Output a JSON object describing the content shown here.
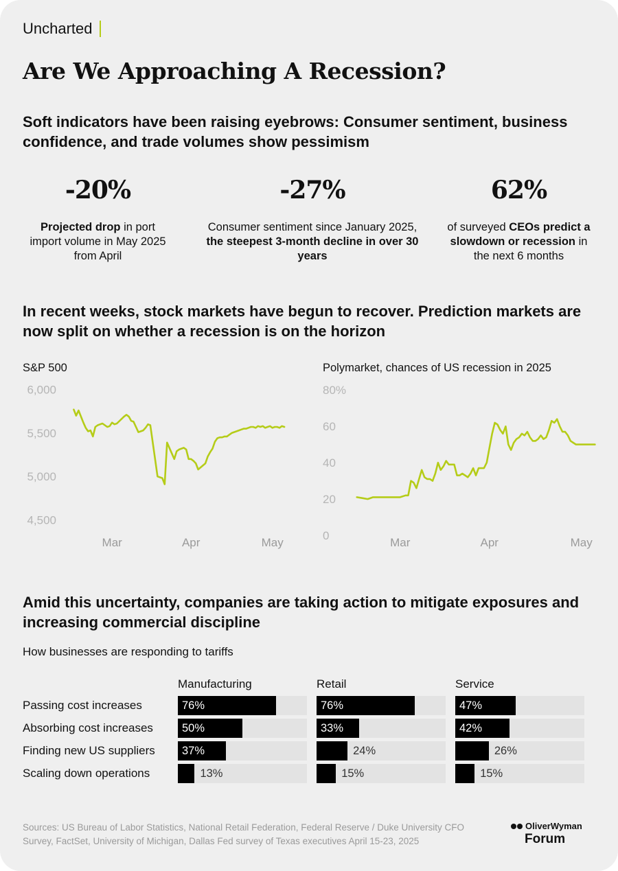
{
  "brand": "Uncharted",
  "title": "Are We Approaching A Recession?",
  "section1_heading": "Soft indicators have been raising eyebrows: Consumer sentiment, business confidence, and trade volumes show pessimism",
  "stats": [
    {
      "value": "-20%",
      "desc_parts": [
        {
          "t": "Projected drop",
          "b": true
        },
        {
          "t": " in port import volume in May 2025 from April",
          "b": false
        }
      ]
    },
    {
      "value": "-27%",
      "desc_parts": [
        {
          "t": "Consumer sentiment since January 2025, ",
          "b": false
        },
        {
          "t": "the steepest 3-month decline in over 30 years",
          "b": true
        }
      ]
    },
    {
      "value": "62%",
      "desc_parts": [
        {
          "t": "of surveyed ",
          "b": false
        },
        {
          "t": "CEOs predict a slowdown or recession",
          "b": true
        },
        {
          "t": " in the next 6 months",
          "b": false
        }
      ]
    }
  ],
  "section2_heading": "In recent weeks, stock markets have begun to recover. Prediction markets are now split on whether a recession is on the horizon",
  "chart_data": [
    {
      "type": "line",
      "title": "S&P 500",
      "color": "#b5cc18",
      "ylim": [
        4400,
        6100
      ],
      "yticks": [
        4500,
        5000,
        5500,
        6000
      ],
      "ytick_labels": [
        "4,500",
        "5,000",
        "5,500",
        "6,000"
      ],
      "xticks": [
        {
          "label": "Mar",
          "x": 16
        },
        {
          "label": "Apr",
          "x": 49
        },
        {
          "label": "May",
          "x": 83
        }
      ],
      "xlim": [
        -5,
        94
      ],
      "series": [
        {
          "x": [
            0,
            1,
            2,
            3,
            4,
            5,
            6,
            7,
            8,
            9,
            10,
            11,
            12,
            14,
            15,
            16,
            17,
            18,
            21,
            22,
            23,
            24,
            25,
            26,
            27,
            28,
            29,
            30,
            31,
            32,
            35,
            36,
            37,
            38,
            39,
            42,
            43,
            44,
            45,
            46,
            47,
            48,
            49,
            50,
            51,
            52,
            55,
            56,
            57,
            58,
            59,
            60,
            61,
            62,
            63,
            64,
            65,
            66,
            67,
            68,
            69,
            70,
            71,
            72,
            73,
            74,
            75,
            76,
            77,
            78,
            79,
            80,
            81,
            82,
            83,
            84,
            85,
            86,
            87,
            88
          ],
          "values": [
            5770,
            5700,
            5760,
            5690,
            5620,
            5560,
            5520,
            5530,
            5460,
            5570,
            5590,
            5600,
            5610,
            5570,
            5580,
            5620,
            5600,
            5610,
            5690,
            5710,
            5690,
            5640,
            5630,
            5570,
            5510,
            5520,
            5530,
            5560,
            5600,
            5590,
            5000,
            4990,
            4980,
            4910,
            5390,
            5200,
            5290,
            5310,
            5320,
            5330,
            5310,
            5200,
            5200,
            5180,
            5150,
            5080,
            5150,
            5230,
            5280,
            5320,
            5400,
            5440,
            5450,
            5450,
            5460,
            5460,
            5480,
            5500,
            5510,
            5520,
            5530,
            5540,
            5550,
            5550,
            5560,
            5570,
            5570,
            5560,
            5580,
            5570,
            5580,
            5560,
            5570,
            5580,
            5560,
            5570,
            5570,
            5560,
            5580,
            5570
          ]
        }
      ]
    },
    {
      "type": "line",
      "title": "Polymarket, chances of US recession in 2025",
      "color": "#b5cc18",
      "ylim": [
        0,
        85
      ],
      "yticks": [
        0,
        20,
        40,
        60,
        80
      ],
      "ytick_labels": [
        "0",
        "20",
        "40",
        "60",
        "80%"
      ],
      "xticks": [
        {
          "label": "Mar",
          "x": 16
        },
        {
          "label": "Apr",
          "x": 49
        },
        {
          "label": "May",
          "x": 83
        }
      ],
      "xlim": [
        -5,
        94
      ],
      "series": [
        {
          "x": [
            0,
            2,
            4,
            6,
            8,
            10,
            12,
            14,
            16,
            18,
            19,
            20,
            21,
            22,
            23,
            24,
            25,
            26,
            27,
            28,
            29,
            30,
            31,
            32,
            33,
            34,
            35,
            36,
            37,
            38,
            39,
            40,
            41,
            42,
            43,
            44,
            45,
            46,
            47,
            48,
            49,
            50,
            51,
            52,
            53,
            54,
            55,
            56,
            57,
            58,
            59,
            60,
            61,
            62,
            63,
            64,
            65,
            66,
            67,
            68,
            69,
            70,
            71,
            72,
            73,
            74,
            75,
            76,
            77,
            78,
            79,
            80,
            81,
            82,
            83,
            84,
            85,
            86,
            87,
            88
          ],
          "values": [
            21,
            20.5,
            20,
            21,
            21,
            21,
            21,
            21,
            21,
            22,
            22,
            30,
            29,
            26,
            31,
            36,
            32,
            31,
            31,
            30,
            34,
            40,
            36,
            38,
            41,
            39,
            39,
            39,
            33,
            33,
            34,
            33,
            32,
            34,
            37,
            33,
            37,
            37,
            37,
            40,
            48,
            56,
            62,
            61,
            58,
            56,
            60,
            50,
            47,
            51,
            53,
            54,
            56,
            55,
            57,
            54,
            52,
            52,
            53,
            55,
            53,
            54,
            58,
            63,
            62,
            64,
            60,
            57,
            57,
            55,
            52,
            51,
            50,
            50,
            50,
            50,
            50,
            50,
            50,
            50
          ]
        }
      ]
    },
    {
      "type": "bar",
      "title": "How businesses are responding to tariffs",
      "categories": [
        "Passing cost increases",
        "Absorbing cost increases",
        "Finding new US suppliers",
        "Scaling down operations"
      ],
      "series": [
        {
          "name": "Manufacturing",
          "values": [
            76,
            50,
            37,
            13
          ]
        },
        {
          "name": "Retail",
          "values": [
            76,
            33,
            24,
            15
          ]
        },
        {
          "name": "Service",
          "values": [
            47,
            42,
            26,
            15
          ]
        }
      ],
      "unit": "%",
      "color": "#000000",
      "track_color": "#e3e3e3"
    }
  ],
  "section3_heading": "Amid this uncertainty, companies are taking action to mitigate exposures and increasing commercial discipline",
  "sources": "Sources: US Bureau of Labor Statistics, National Retail Federation, Federal Reserve / Duke University CFO Survey, FactSet, University of Michigan, Dallas Fed survey of Texas executives April 15-23, 2025",
  "logo": {
    "top": "OliverWyman",
    "bottom": "Forum"
  },
  "colors": {
    "accent": "#b5cc18",
    "background": "#efefef",
    "text": "#111111",
    "muted": "#9a9a9a"
  }
}
